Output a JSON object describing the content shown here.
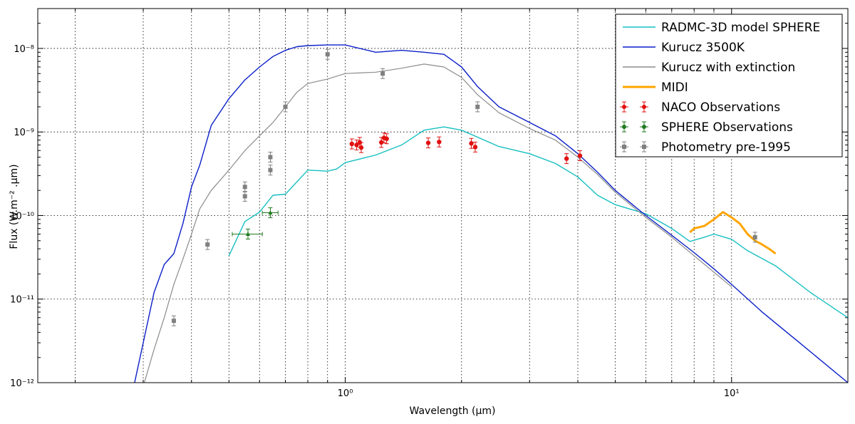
{
  "chart_data": {
    "type": "line",
    "x_scale": "log",
    "y_scale": "log",
    "xlim": [
      0.16,
      20
    ],
    "ylim": [
      1e-12,
      3e-08
    ],
    "xlabel": "Wavelength (μm)",
    "ylabel": "Flux (W.m⁻² .μm)",
    "grid": true,
    "legend_position": "top-right",
    "x_ticks": [
      {
        "value": 1,
        "label": "10⁰"
      },
      {
        "value": 10,
        "label": "10¹"
      }
    ],
    "y_ticks": [
      {
        "value": 1e-12,
        "label": "10⁻¹²"
      },
      {
        "value": 1e-11,
        "label": "10⁻¹¹"
      },
      {
        "value": 1e-10,
        "label": "10⁻¹⁰"
      },
      {
        "value": 1e-09,
        "label": "10⁻⁹"
      },
      {
        "value": 1e-08,
        "label": "10⁻⁸"
      }
    ],
    "series": [
      {
        "name": "RADMC-3D model SPHERE",
        "kind": "line",
        "color": "#17bfc1",
        "points": [
          [
            0.5,
            3.3e-11
          ],
          [
            0.55,
            8.5e-11
          ],
          [
            0.6,
            1.1e-10
          ],
          [
            0.65,
            1.75e-10
          ],
          [
            0.7,
            1.8e-10
          ],
          [
            0.8,
            3.5e-10
          ],
          [
            0.9,
            3.4e-10
          ],
          [
            0.95,
            3.6e-10
          ],
          [
            1.0,
            4.3e-10
          ],
          [
            1.2,
            5.3e-10
          ],
          [
            1.4,
            7e-10
          ],
          [
            1.6,
            1.05e-09
          ],
          [
            1.8,
            1.15e-09
          ],
          [
            2.0,
            1.05e-09
          ],
          [
            2.5,
            6.7e-10
          ],
          [
            3.0,
            5.5e-10
          ],
          [
            3.5,
            4.2e-10
          ],
          [
            4.0,
            2.9e-10
          ],
          [
            4.5,
            1.75e-10
          ],
          [
            5.0,
            1.35e-10
          ],
          [
            6.0,
            1.05e-10
          ],
          [
            7.0,
            7e-11
          ],
          [
            7.8,
            4.9e-11
          ],
          [
            8.5,
            5.5e-11
          ],
          [
            9.0,
            6e-11
          ],
          [
            10.0,
            5.2e-11
          ],
          [
            11.0,
            3.8e-11
          ],
          [
            13.0,
            2.5e-11
          ],
          [
            16.0,
            1.2e-11
          ],
          [
            20.0,
            6e-12
          ]
        ]
      },
      {
        "name": "Kurucz 3500K",
        "kind": "line",
        "color": "#0b1fc9",
        "points": [
          [
            0.285,
            1e-12
          ],
          [
            0.3,
            3e-12
          ],
          [
            0.32,
            1.2e-11
          ],
          [
            0.34,
            2.6e-11
          ],
          [
            0.36,
            3.5e-11
          ],
          [
            0.38,
            8e-11
          ],
          [
            0.4,
            2.2e-10
          ],
          [
            0.42,
            4e-10
          ],
          [
            0.45,
            1.2e-09
          ],
          [
            0.5,
            2.5e-09
          ],
          [
            0.55,
            4.2e-09
          ],
          [
            0.6,
            6e-09
          ],
          [
            0.65,
            8e-09
          ],
          [
            0.7,
            9.5e-09
          ],
          [
            0.75,
            1.05e-08
          ],
          [
            0.8,
            1.08e-08
          ],
          [
            0.9,
            1.1e-08
          ],
          [
            1.0,
            1.1e-08
          ],
          [
            1.2,
            9e-09
          ],
          [
            1.4,
            9.5e-09
          ],
          [
            1.6,
            9e-09
          ],
          [
            1.8,
            8.5e-09
          ],
          [
            2.0,
            6e-09
          ],
          [
            2.2,
            3.5e-09
          ],
          [
            2.5,
            2e-09
          ],
          [
            3.0,
            1.3e-09
          ],
          [
            3.5,
            9e-10
          ],
          [
            4.0,
            5.5e-10
          ],
          [
            4.5,
            3.3e-10
          ],
          [
            5.0,
            2e-10
          ],
          [
            6.0,
            1e-10
          ],
          [
            7.0,
            5.8e-11
          ],
          [
            8.0,
            3.6e-11
          ],
          [
            9.0,
            2.3e-11
          ],
          [
            10.0,
            1.5e-11
          ],
          [
            12.0,
            7e-12
          ],
          [
            15.0,
            3e-12
          ],
          [
            20.0,
            1e-12
          ]
        ]
      },
      {
        "name": "Kurucz with extinction",
        "kind": "line",
        "color": "#8c8c8c",
        "points": [
          [
            0.3,
            9e-13
          ],
          [
            0.32,
            2.5e-12
          ],
          [
            0.34,
            6e-12
          ],
          [
            0.36,
            1.5e-11
          ],
          [
            0.38,
            3e-11
          ],
          [
            0.4,
            6e-11
          ],
          [
            0.42,
            1.2e-10
          ],
          [
            0.45,
            2e-10
          ],
          [
            0.5,
            3.5e-10
          ],
          [
            0.55,
            6e-10
          ],
          [
            0.6,
            9e-10
          ],
          [
            0.65,
            1.3e-09
          ],
          [
            0.7,
            2e-09
          ],
          [
            0.75,
            3e-09
          ],
          [
            0.8,
            3.8e-09
          ],
          [
            0.9,
            4.3e-09
          ],
          [
            1.0,
            5e-09
          ],
          [
            1.2,
            5.2e-09
          ],
          [
            1.4,
            5.8e-09
          ],
          [
            1.6,
            6.5e-09
          ],
          [
            1.8,
            6e-09
          ],
          [
            2.0,
            4.5e-09
          ],
          [
            2.2,
            2.8e-09
          ],
          [
            2.5,
            1.7e-09
          ],
          [
            3.0,
            1.1e-09
          ],
          [
            3.5,
            8e-10
          ],
          [
            4.0,
            5e-10
          ],
          [
            4.5,
            3.1e-10
          ],
          [
            5.0,
            1.9e-10
          ],
          [
            6.0,
            9.5e-11
          ],
          [
            7.0,
            5.5e-11
          ],
          [
            8.0,
            3.3e-11
          ],
          [
            9.0,
            2.1e-11
          ],
          [
            10.0,
            1.4e-11
          ]
        ]
      },
      {
        "name": "MIDI",
        "kind": "line",
        "color": "#ffa500",
        "points": [
          [
            7.8,
            6.3e-11
          ],
          [
            8.0,
            7e-11
          ],
          [
            8.5,
            7.5e-11
          ],
          [
            9.0,
            9e-11
          ],
          [
            9.5,
            1.1e-10
          ],
          [
            10.0,
            9.5e-11
          ],
          [
            10.5,
            8e-11
          ],
          [
            11.0,
            6e-11
          ],
          [
            11.5,
            5e-11
          ],
          [
            12.0,
            4.5e-11
          ],
          [
            12.5,
            4e-11
          ],
          [
            13.0,
            3.5e-11
          ]
        ]
      },
      {
        "name": "NACO Observations",
        "kind": "errorbar",
        "color": "#e0100f",
        "points": [
          [
            1.04,
            7.2e-10
          ],
          [
            1.07,
            7e-10
          ],
          [
            1.09,
            7.5e-10
          ],
          [
            1.1,
            6.5e-10
          ],
          [
            1.24,
            7.5e-10
          ],
          [
            1.26,
            8.5e-10
          ],
          [
            1.28,
            8.3e-10
          ],
          [
            1.64,
            7.4e-10
          ],
          [
            1.75,
            7.6e-10
          ],
          [
            2.12,
            7.3e-10
          ],
          [
            2.17,
            6.6e-10
          ],
          [
            3.74,
            4.8e-10
          ],
          [
            4.05,
            5.2e-10
          ]
        ]
      },
      {
        "name": "SPHERE Observations",
        "kind": "errorbar",
        "color": "#1f7a1f",
        "points": [
          [
            0.56,
            6e-11
          ],
          [
            0.64,
            1.08e-10
          ]
        ],
        "xerr": [
          [
            0.51,
            0.61
          ],
          [
            0.61,
            0.67
          ]
        ]
      },
      {
        "name": "Photometry pre-1995",
        "kind": "errorbar",
        "color": "#808080",
        "points": [
          [
            0.36,
            5.5e-12
          ],
          [
            0.44,
            4.5e-11
          ],
          [
            0.55,
            2.2e-10
          ],
          [
            0.55,
            1.7e-10
          ],
          [
            0.64,
            3.5e-10
          ],
          [
            0.64,
            5e-10
          ],
          [
            0.7,
            2e-09
          ],
          [
            0.9,
            8.5e-09
          ],
          [
            1.25,
            5e-09
          ],
          [
            2.2,
            2e-09
          ],
          [
            11.5,
            5.5e-11
          ]
        ]
      }
    ]
  }
}
